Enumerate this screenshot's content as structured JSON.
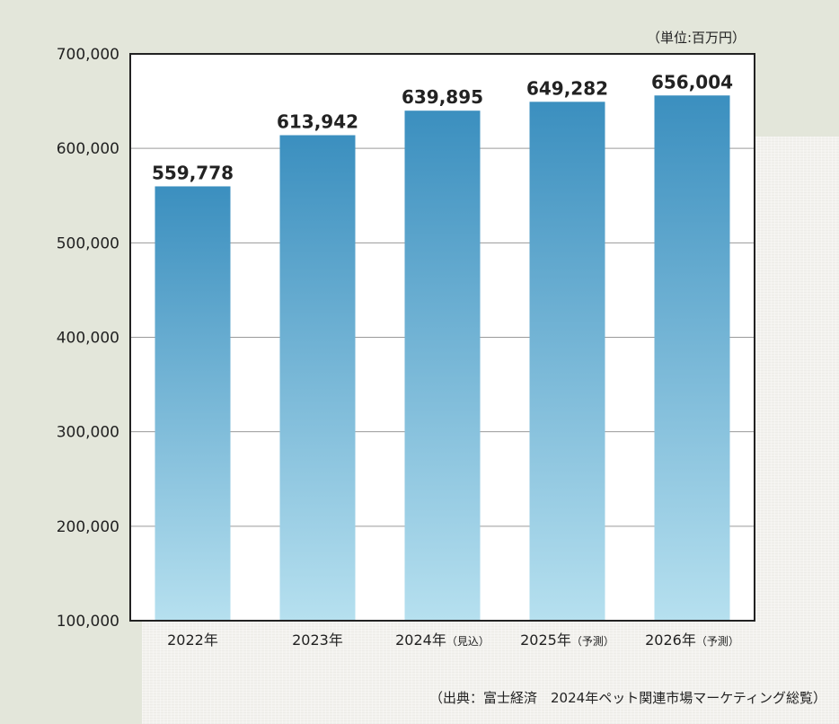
{
  "unit_label": "（単位:百万円）",
  "source_note": "（出典：富士経済　2024年ペット関連市場マーケティング総覧）",
  "colors": {
    "bar_top": "#3b8fbf",
    "bar_bottom": "#b6e0ef",
    "plot_bg": "#ffffff",
    "grid": "#9a9a9a",
    "axis": "#222222",
    "text": "#222222"
  },
  "chart_data": {
    "type": "bar",
    "title": "",
    "xlabel": "",
    "ylabel": "",
    "ylim": [
      100000,
      700000
    ],
    "y_ticks": [
      {
        "value": 100000,
        "label": "100,000"
      },
      {
        "value": 200000,
        "label": "200,000"
      },
      {
        "value": 300000,
        "label": "300,000"
      },
      {
        "value": 400000,
        "label": "400,000"
      },
      {
        "value": 500000,
        "label": "500,000"
      },
      {
        "value": 600000,
        "label": "600,000"
      },
      {
        "value": 700000,
        "label": "700,000"
      }
    ],
    "grid": true,
    "categories": [
      {
        "main": "2022年",
        "note": ""
      },
      {
        "main": "2023年",
        "note": ""
      },
      {
        "main": "2024年",
        "note": "（見込）"
      },
      {
        "main": "2025年",
        "note": "（予測）"
      },
      {
        "main": "2026年",
        "note": "（予測）"
      }
    ],
    "values": [
      559778,
      613942,
      639895,
      649282,
      656004
    ],
    "value_labels": [
      "559,778",
      "613,942",
      "639,895",
      "649,282",
      "656,004"
    ]
  }
}
